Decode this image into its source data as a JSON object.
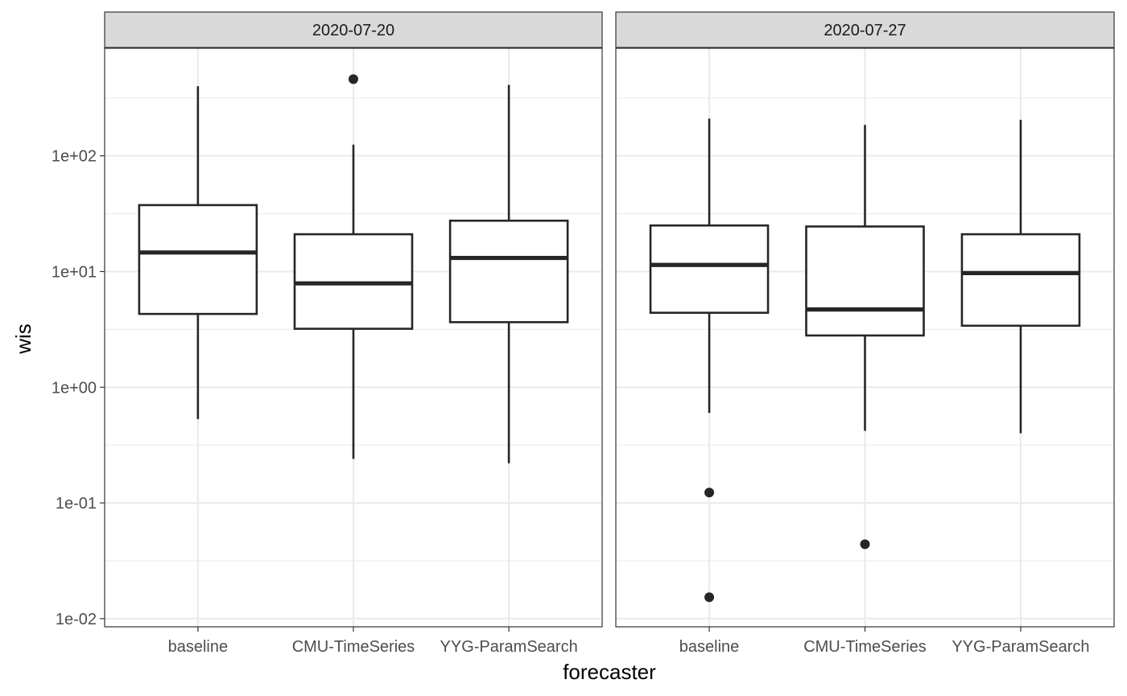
{
  "chart_data": {
    "type": "boxplot",
    "title": "",
    "xlabel": "forecaster",
    "ylabel": "wis",
    "yscale": "log10",
    "ylim": [
      0.0085,
      850
    ],
    "y_ticks": [
      {
        "value": 0.01,
        "label": "1e-02"
      },
      {
        "value": 0.1,
        "label": "1e-01"
      },
      {
        "value": 1,
        "label": "1e+00"
      },
      {
        "value": 10,
        "label": "1e+01"
      },
      {
        "value": 100,
        "label": "1e+02"
      }
    ],
    "grid": true,
    "categories": [
      "baseline",
      "CMU-TimeSeries",
      "YYG-ParamSearch"
    ],
    "facets": [
      {
        "label": "2020-07-20",
        "boxes": [
          {
            "forecaster": "baseline",
            "whisker_low": 0.53,
            "q1": 4.3,
            "median": 14.6,
            "q3": 37.5,
            "whisker_high": 400,
            "outliers": []
          },
          {
            "forecaster": "CMU-TimeSeries",
            "whisker_low": 0.24,
            "q1": 3.2,
            "median": 7.9,
            "q3": 21,
            "whisker_high": 125,
            "outliers": [
              460
            ]
          },
          {
            "forecaster": "YYG-ParamSearch",
            "whisker_low": 0.22,
            "q1": 3.65,
            "median": 13.1,
            "q3": 27.5,
            "whisker_high": 410,
            "outliers": []
          }
        ]
      },
      {
        "label": "2020-07-27",
        "boxes": [
          {
            "forecaster": "baseline",
            "whisker_low": 0.6,
            "q1": 4.4,
            "median": 11.4,
            "q3": 25,
            "whisker_high": 210,
            "outliers": [
              0.123,
              0.0153
            ]
          },
          {
            "forecaster": "CMU-TimeSeries",
            "whisker_low": 0.42,
            "q1": 2.8,
            "median": 4.7,
            "q3": 24.5,
            "whisker_high": 185,
            "outliers": [
              0.044
            ]
          },
          {
            "forecaster": "YYG-ParamSearch",
            "whisker_low": 0.4,
            "q1": 3.4,
            "median": 9.7,
            "q3": 21,
            "whisker_high": 205,
            "outliers": []
          }
        ]
      }
    ]
  }
}
